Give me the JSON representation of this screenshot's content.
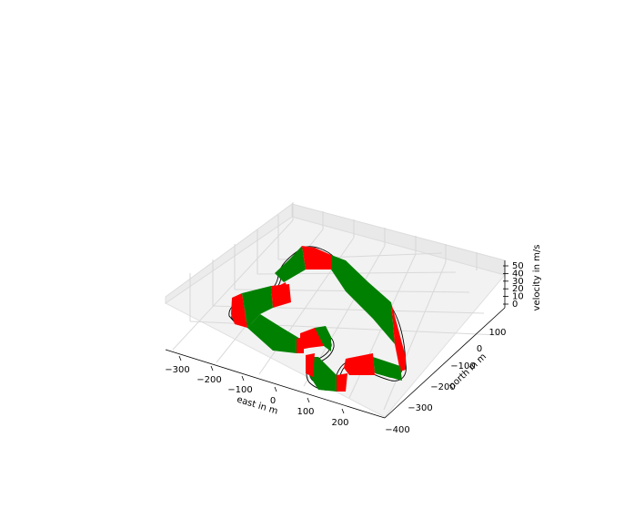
{
  "chart_data": {
    "type": "3d-ribbon",
    "title": "",
    "xlabel": "east in m",
    "ylabel": "north in m",
    "zlabel": "velocity in m/s",
    "x_ticks": [
      "−300",
      "−200",
      "−100",
      "0",
      "100",
      "200"
    ],
    "y_ticks": [
      "100",
      "0",
      "−100",
      "−200",
      "−300",
      "−400"
    ],
    "z_ticks": [
      "0",
      "10",
      "20",
      "30",
      "40",
      "50"
    ],
    "xlim": [
      -330,
      260
    ],
    "ylim": [
      -420,
      150
    ],
    "zlim": [
      0,
      55
    ],
    "grid": true,
    "colors": {
      "accelerating": "#008000",
      "braking": "#ff0000",
      "track": "#000000",
      "pane": "#f2f2f2",
      "grid": "#d6d6d6"
    }
  }
}
